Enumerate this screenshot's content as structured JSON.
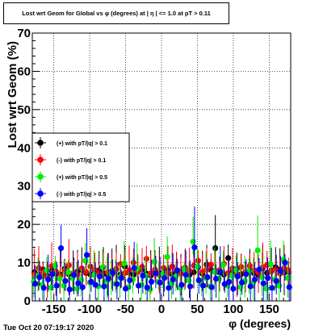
{
  "title": "Lost wrt Geom for Global vs φ (degrees) at | η | <= 1.0 at pT > 0.11",
  "timestamp": "Tue Oct 20 07:19:17 2020",
  "colors": {
    "plus_pt01": "#000000",
    "minus_pt01": "#ff0000",
    "plus_pt05": "#00ee00",
    "minus_pt05": "#0000ff"
  },
  "chart_data": {
    "type": "scatter",
    "title": "Lost wrt Geom for Global vs φ (degrees) at | η | <= 1.0 at pT > 0.11",
    "xlabel": "φ (degrees)",
    "ylabel": "Lost wrt Geom (%)",
    "xlim": [
      -180,
      180
    ],
    "ylim": [
      0,
      70
    ],
    "xticks": [
      -150,
      -100,
      -50,
      0,
      50,
      100,
      150
    ],
    "yticks": [
      0,
      10,
      20,
      30,
      40,
      50,
      60,
      70
    ],
    "grid": true,
    "legend_position": "left-middle",
    "series": [
      {
        "name": "(+) with pT/|q| > 0.1",
        "color": "#000000",
        "x": [
          -177,
          -171,
          -165,
          -159,
          -153,
          -147,
          -141,
          -135,
          -129,
          -123,
          -117,
          -111,
          -105,
          -99,
          -93,
          -87,
          -81,
          -75,
          -69,
          -63,
          -57,
          -51,
          -45,
          -39,
          -33,
          -27,
          -21,
          -15,
          -9,
          -3,
          3,
          9,
          15,
          21,
          27,
          33,
          39,
          45,
          51,
          57,
          63,
          69,
          75,
          81,
          87,
          93,
          99,
          105,
          111,
          117,
          123,
          129,
          135,
          141,
          147,
          153,
          159,
          165,
          171,
          177
        ],
        "y": [
          7.5,
          6.8,
          8.2,
          6.5,
          7.9,
          7.1,
          6.9,
          8.4,
          7.0,
          6.6,
          7.7,
          8.1,
          7.3,
          6.9,
          7.5,
          8.0,
          7.2,
          6.7,
          7.8,
          8.3,
          7.0,
          9.0,
          7.4,
          6.8,
          7.6,
          8.2,
          7.1,
          6.6,
          7.9,
          7.3,
          7.0,
          8.0,
          6.9,
          7.7,
          7.2,
          8.4,
          6.8,
          7.5,
          8.8,
          7.1,
          9.5,
          8.1,
          13.8,
          7.4,
          6.9,
          11.2,
          7.8,
          8.3,
          7.0,
          7.6,
          8.0,
          7.2,
          6.8,
          8.5,
          7.3,
          7.9,
          8.8,
          8.2,
          7.4,
          7.6
        ]
      },
      {
        "name": "(-) with pT/|q| > 0.1",
        "color": "#ff0000",
        "x": [
          -177,
          -171,
          -165,
          -159,
          -153,
          -147,
          -141,
          -135,
          -129,
          -123,
          -117,
          -111,
          -105,
          -99,
          -93,
          -87,
          -81,
          -75,
          -69,
          -63,
          -57,
          -51,
          -45,
          -39,
          -33,
          -27,
          -21,
          -15,
          -9,
          -3,
          3,
          9,
          15,
          21,
          27,
          33,
          39,
          45,
          51,
          57,
          63,
          69,
          75,
          81,
          87,
          93,
          99,
          105,
          111,
          117,
          123,
          129,
          135,
          141,
          147,
          153,
          159,
          165,
          171,
          177
        ],
        "y": [
          7.0,
          8.6,
          7.4,
          6.2,
          9.1,
          7.7,
          6.5,
          8.0,
          9.3,
          7.2,
          6.8,
          8.5,
          7.6,
          9.0,
          8.1,
          7.1,
          8.8,
          7.5,
          6.9,
          8.4,
          9.6,
          7.3,
          8.0,
          10.0,
          7.7,
          8.9,
          11.0,
          7.2,
          8.2,
          6.8,
          8.6,
          7.4,
          9.0,
          8.0,
          7.1,
          8.7,
          7.9,
          9.2,
          10.5,
          7.6,
          8.3,
          9.5,
          7.8,
          8.1,
          9.7,
          7.3,
          8.5,
          7.0,
          8.9,
          7.5,
          9.2,
          8.0,
          7.4,
          8.8,
          9.4,
          7.7,
          8.2,
          7.1,
          8.6,
          7.9
        ]
      },
      {
        "name": "(+) with pT/|q| > 0.5",
        "color": "#00ee00",
        "x": [
          -178,
          -172,
          -166,
          -160,
          -154,
          -148,
          -142,
          -136,
          -130,
          -124,
          -118,
          -112,
          -106,
          -100,
          -94,
          -88,
          -82,
          -76,
          -70,
          -64,
          -58,
          -52,
          -46,
          -40,
          -34,
          -28,
          -22,
          -16,
          -10,
          -4,
          2,
          8,
          14,
          20,
          26,
          32,
          38,
          44,
          50,
          56,
          62,
          68,
          74,
          80,
          86,
          92,
          98,
          104,
          110,
          116,
          122,
          128,
          134,
          140,
          146,
          152,
          158,
          164,
          170,
          176
        ],
        "y": [
          5.0,
          6.5,
          4.2,
          8.0,
          3.5,
          9.2,
          5.8,
          4.0,
          7.5,
          6.0,
          3.2,
          5.5,
          10.5,
          4.8,
          6.8,
          3.8,
          8.8,
          5.2,
          7.2,
          4.5,
          6.2,
          9.8,
          3.6,
          5.6,
          8.4,
          4.2,
          6.6,
          3.0,
          10.2,
          5.0,
          7.0,
          11.5,
          4.6,
          6.4,
          3.4,
          8.2,
          5.4,
          15.5,
          9.0,
          4.4,
          6.0,
          3.8,
          7.6,
          5.8,
          9.4,
          4.0,
          6.6,
          8.0,
          3.6,
          5.2,
          7.8,
          4.8,
          13.2,
          6.2,
          3.2,
          9.6,
          5.6,
          4.0,
          10.8,
          6.0
        ]
      },
      {
        "name": "(-) with pT/|q| > 0.5",
        "color": "#0000ff",
        "x": [
          -176,
          -170,
          -164,
          -158,
          -152,
          -146,
          -140,
          -134,
          -128,
          -122,
          -116,
          -110,
          -104,
          -98,
          -92,
          -86,
          -80,
          -74,
          -68,
          -62,
          -56,
          -50,
          -44,
          -38,
          -32,
          -26,
          -20,
          -14,
          -8,
          -2,
          4,
          10,
          16,
          22,
          28,
          34,
          40,
          46,
          52,
          58,
          64,
          70,
          76,
          82,
          88,
          94,
          100,
          106,
          112,
          118,
          124,
          130,
          136,
          142,
          148,
          154,
          160,
          166,
          172,
          178
        ],
        "y": [
          4.5,
          6.2,
          3.4,
          5.6,
          7.0,
          4.0,
          13.8,
          5.2,
          3.0,
          6.8,
          4.6,
          3.6,
          12.0,
          5.0,
          4.2,
          6.4,
          3.8,
          5.8,
          7.4,
          4.4,
          6.0,
          3.2,
          5.4,
          8.6,
          4.0,
          6.6,
          3.5,
          5.0,
          7.2,
          4.8,
          6.0,
          3.4,
          5.6,
          8.0,
          4.2,
          6.8,
          3.8,
          14.0,
          5.4,
          4.0,
          6.2,
          3.6,
          5.8,
          7.6,
          4.4,
          5.0,
          3.2,
          6.4,
          4.8,
          7.0,
          3.8,
          5.6,
          8.2,
          4.6,
          6.0,
          3.4,
          5.2,
          7.8,
          10.0,
          3.6
        ]
      }
    ]
  }
}
